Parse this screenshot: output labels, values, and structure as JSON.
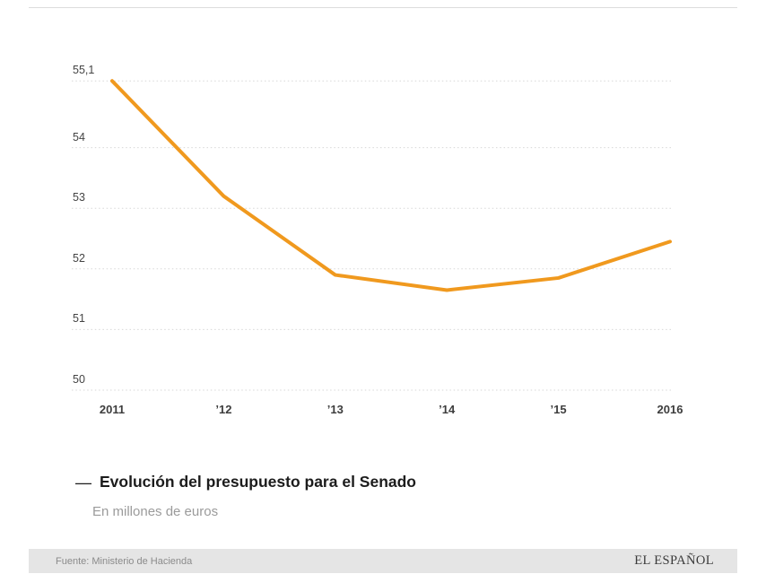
{
  "chart_data": {
    "type": "line",
    "title": "Evolución del presupuesto para el Senado",
    "subtitle": "En millones de euros",
    "x": [
      "2011",
      "’12",
      "’13",
      "’14",
      "’15",
      "2016"
    ],
    "series": [
      {
        "name": "Evolución del presupuesto para el Senado",
        "values": [
          55.1,
          53.2,
          51.9,
          51.65,
          51.85,
          52.45
        ]
      }
    ],
    "y_ticks": [
      {
        "label": "55,1",
        "value": 55.1
      },
      {
        "label": "54",
        "value": 54
      },
      {
        "label": "53",
        "value": 53
      },
      {
        "label": "52",
        "value": 52
      },
      {
        "label": "51",
        "value": 51
      },
      {
        "label": "50",
        "value": 50
      }
    ],
    "ylim": [
      49.9,
      55.35
    ],
    "grid": "horizontal-dotted",
    "legend_position": "bottom-left",
    "line_color": "#F0991E"
  },
  "legend": {
    "marker": "—",
    "title": "Evolución del presupuesto para el Senado",
    "subtitle": "En millones de euros"
  },
  "footer": {
    "source": "Fuente: Ministerio de Hacienda",
    "brand": "EL ESPAÑOL"
  },
  "colors": {
    "line": "#F0991E",
    "gridline": "#d7d7d7",
    "axis_text": "#444444",
    "legend_title": "#1c1c1c",
    "legend_subtitle": "#9b9b9b",
    "footer_background": "#e5e5e5",
    "footer_text": "#8b8b8b",
    "brand_text": "#3a3a3a"
  }
}
